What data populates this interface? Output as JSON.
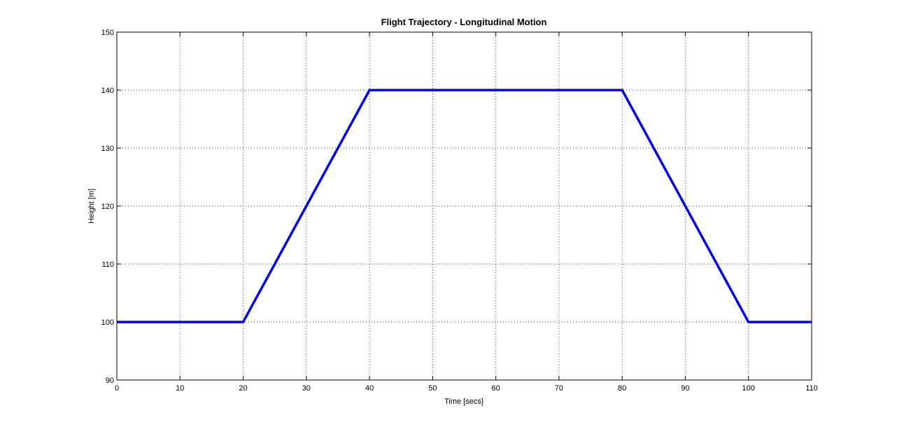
{
  "chart_data": {
    "type": "line",
    "title": "Flight Trajectory - Longitudinal Motion",
    "xlabel": "Time [secs]",
    "ylabel": "Height [m]",
    "xlim": [
      0,
      110
    ],
    "ylim": [
      90,
      150
    ],
    "xticks": [
      0,
      10,
      20,
      30,
      40,
      50,
      60,
      70,
      80,
      90,
      100,
      110
    ],
    "yticks": [
      90,
      100,
      110,
      120,
      130,
      140,
      150
    ],
    "xtick_labels": [
      "0",
      "10",
      "20",
      "30",
      "40",
      "50",
      "60",
      "70",
      "80",
      "90",
      "100",
      "110"
    ],
    "ytick_labels": [
      "90",
      "100",
      "110",
      "120",
      "130",
      "140",
      "150"
    ],
    "grid": true,
    "series": [
      {
        "color": "#0000ff",
        "x": [
          0,
          20,
          40,
          80,
          100,
          110
        ],
        "y": [
          100,
          100,
          140,
          140,
          100,
          100
        ]
      }
    ]
  }
}
